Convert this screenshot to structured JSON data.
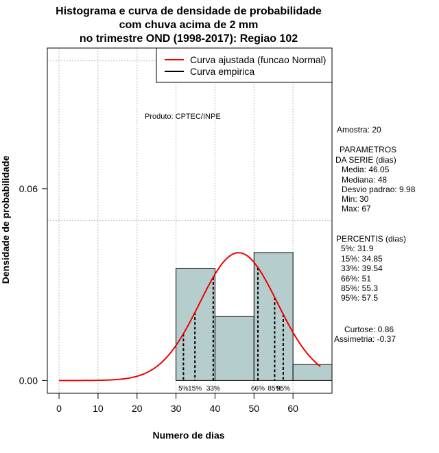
{
  "chart_data": {
    "type": "bar",
    "title_lines": [
      "Histograma e curva de densidade de probabilidade",
      "com chuva acima de 2 mm",
      "no trimestre OND (1998-2017): Regiao 102"
    ],
    "xlabel": "Numero de dias",
    "ylabel": "Densidade de probabilidade",
    "xlim": [
      -3,
      70
    ],
    "ylim": [
      -0.004,
      0.104
    ],
    "x_ticks": [
      0,
      10,
      20,
      30,
      40,
      50,
      60
    ],
    "y_ticks": [
      0.0,
      0.06
    ],
    "y_tick_labels": [
      "0.00",
      "0.06"
    ],
    "grid": true,
    "grid_x": [
      0,
      10,
      20,
      30,
      40,
      50,
      60
    ],
    "grid_y": [
      0.05,
      0.1
    ],
    "bar_color": "#b5cdcc",
    "bins": [
      {
        "x0": 30,
        "x1": 40,
        "density": 0.035
      },
      {
        "x0": 40,
        "x1": 50,
        "density": 0.02
      },
      {
        "x0": 50,
        "x1": 60,
        "density": 0.04
      },
      {
        "x0": 60,
        "x1": 70,
        "density": 0.005
      }
    ],
    "normal_fit": {
      "mean": 46.05,
      "sd": 9.98,
      "x_from": 0,
      "x_to": 67,
      "color": "#ee0000"
    },
    "percentiles": [
      {
        "label": "5%",
        "value": 31.9
      },
      {
        "label": "15%",
        "value": 34.85
      },
      {
        "label": "33%",
        "value": 39.54
      },
      {
        "label": "66%",
        "value": 51
      },
      {
        "label": "85%",
        "value": 55.3
      },
      {
        "label": "95%",
        "value": 57.5
      }
    ],
    "legend": {
      "position": "top-right",
      "entries": [
        {
          "label": "Curva ajustada (funcao Normal)",
          "color": "#ee0000"
        },
        {
          "label": "Curva empirica",
          "color": "#000000"
        }
      ]
    },
    "annotation_product": "Produto: CPTEC/INPE"
  },
  "stats_panel": {
    "amostra": "Amostra: 20",
    "param_title": "PARAMETROS",
    "param_subtitle": "DA SERIE (dias)",
    "media": "Media: 46.05",
    "mediana": "Mediana: 48",
    "desvio": "Desvio padrao: 9.98",
    "min": "Min: 30",
    "max": "Max: 67",
    "pct_title": "PERCENTIS (dias)",
    "p5": "5%: 31.9",
    "p15": "15%: 34.85",
    "p33": "33%: 39.54",
    "p66": "66%: 51",
    "p85": "85%: 55.3",
    "p95": "95%: 57.5",
    "curtose": "Curtose: 0.86",
    "assimetria": "Assimetria: -0.37"
  }
}
